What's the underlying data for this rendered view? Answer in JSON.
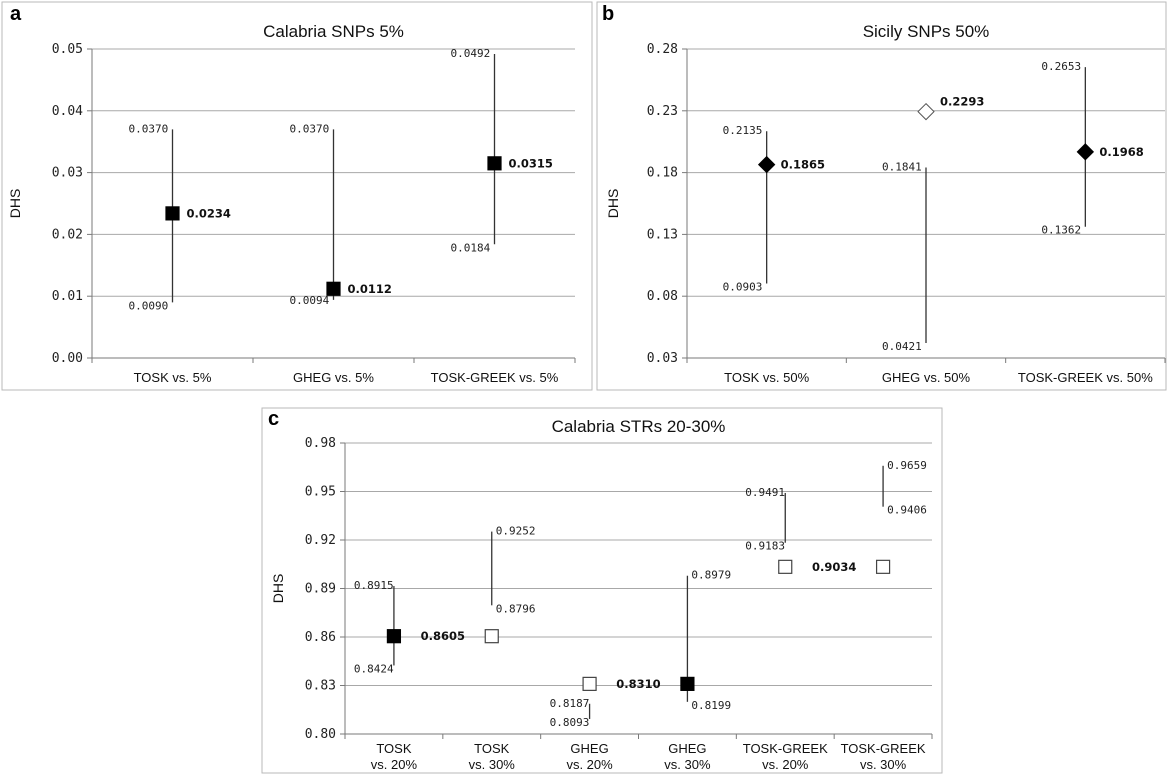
{
  "chart_data": [
    {
      "panel": "a",
      "type": "scatter",
      "title": "Calabria SNPs 5%",
      "ylabel": "DHS",
      "ylim": [
        0,
        0.05
      ],
      "yticks": [
        "0.00",
        "0.01",
        "0.02",
        "0.03",
        "0.04",
        "0.05"
      ],
      "grid": true,
      "categories": [
        "TOSK vs. 5%",
        "GHEG vs. 5%",
        "TOSK-GREEK vs. 5%"
      ],
      "points": [
        {
          "category": "TOSK vs. 5%",
          "value": 0.0234,
          "value_label": "0.0234",
          "upper": 0.037,
          "upper_label": "0.0370",
          "lower": 0.009,
          "lower_label": "0.0090",
          "marker": "square",
          "fill": "#000000"
        },
        {
          "category": "GHEG vs. 5%",
          "value": 0.0112,
          "value_label": "0.0112",
          "upper": 0.037,
          "upper_label": "0.0370",
          "lower": 0.0094,
          "lower_label": "0.0094",
          "marker": "square",
          "fill": "#000000"
        },
        {
          "category": "TOSK-GREEK vs. 5%",
          "value": 0.0315,
          "value_label": "0.0315",
          "upper": 0.0492,
          "upper_label": "0.0492",
          "lower": 0.0184,
          "lower_label": "0.0184",
          "marker": "square",
          "fill": "#000000"
        }
      ]
    },
    {
      "panel": "b",
      "type": "scatter",
      "title": "Sicily SNPs 50%",
      "ylabel": "DHS",
      "ylim": [
        0.03,
        0.28
      ],
      "yticks": [
        "0.03",
        "0.08",
        "0.13",
        "0.18",
        "0.23",
        "0.28"
      ],
      "grid": true,
      "categories": [
        "TOSK vs. 50%",
        "GHEG vs. 50%",
        "TOSK-GREEK vs. 50%"
      ],
      "points": [
        {
          "category": "TOSK vs. 50%",
          "value": 0.1865,
          "value_label": "0.1865",
          "upper": 0.2135,
          "upper_label": "0.2135",
          "lower": 0.0903,
          "lower_label": "0.0903",
          "marker": "diamond",
          "fill": "#000000"
        },
        {
          "category": "GHEG vs. 50%",
          "value": 0.2293,
          "value_label": "0.2293",
          "upper": 0.1841,
          "upper_label": "0.1841",
          "lower": 0.0421,
          "lower_label": "0.0421",
          "marker": "diamond",
          "fill": "#ffffff"
        },
        {
          "category": "TOSK-GREEK vs. 50%",
          "value": 0.1968,
          "value_label": "0.1968",
          "upper": 0.2653,
          "upper_label": "0.2653",
          "lower": 0.1362,
          "lower_label": "0.1362",
          "marker": "diamond",
          "fill": "#000000"
        }
      ]
    },
    {
      "panel": "c",
      "type": "scatter",
      "title": "Calabria STRs 20-30%",
      "ylabel": "DHS",
      "ylim": [
        0.8,
        0.98
      ],
      "yticks": [
        "0.80",
        "0.83",
        "0.86",
        "0.89",
        "0.92",
        "0.95",
        "0.98"
      ],
      "grid": true,
      "categories": [
        [
          "TOSK",
          "vs. 20%"
        ],
        [
          "TOSK",
          "vs. 30%"
        ],
        [
          "GHEG",
          "vs. 20%"
        ],
        [
          "GHEG",
          "vs. 30%"
        ],
        [
          "TOSK-GREEK",
          "vs. 20%"
        ],
        [
          "TOSK-GREEK",
          "vs. 30%"
        ]
      ],
      "points": [
        {
          "index": 0,
          "value": 0.8605,
          "upper": 0.8915,
          "upper_label": "0.8915",
          "lower": 0.8424,
          "lower_label": "0.8424",
          "marker": "square",
          "fill": "#000000"
        },
        {
          "index": 1,
          "value": 0.8605,
          "upper": 0.9252,
          "upper_label": "0.9252",
          "lower": 0.8796,
          "lower_label": "0.8796",
          "marker": "square",
          "fill": "#ffffff"
        },
        {
          "index": 2,
          "value": 0.831,
          "upper": 0.8187,
          "upper_label": "0.8187",
          "lower": 0.8093,
          "lower_label": "0.8093",
          "marker": "square",
          "fill": "#ffffff"
        },
        {
          "index": 3,
          "value": 0.831,
          "upper": 0.8979,
          "upper_label": "0.8979",
          "lower": 0.8199,
          "lower_label": "0.8199",
          "marker": "square",
          "fill": "#000000"
        },
        {
          "index": 4,
          "value": 0.9034,
          "upper": 0.9491,
          "upper_label": "0.9491",
          "lower": 0.9183,
          "lower_label": "0.9183",
          "marker": "square",
          "fill": "#ffffff"
        },
        {
          "index": 5,
          "value": 0.9034,
          "upper": 0.9659,
          "upper_label": "0.9659",
          "lower": 0.9406,
          "lower_label": "0.9406",
          "marker": "square",
          "fill": "#ffffff"
        }
      ],
      "shared_value_labels": [
        {
          "between": [
            0,
            1
          ],
          "value": 0.8605,
          "label": "0.8605"
        },
        {
          "between": [
            2,
            3
          ],
          "value": 0.831,
          "label": "0.8310"
        },
        {
          "between": [
            4,
            5
          ],
          "value": 0.9034,
          "label": "0.9034"
        }
      ]
    }
  ]
}
